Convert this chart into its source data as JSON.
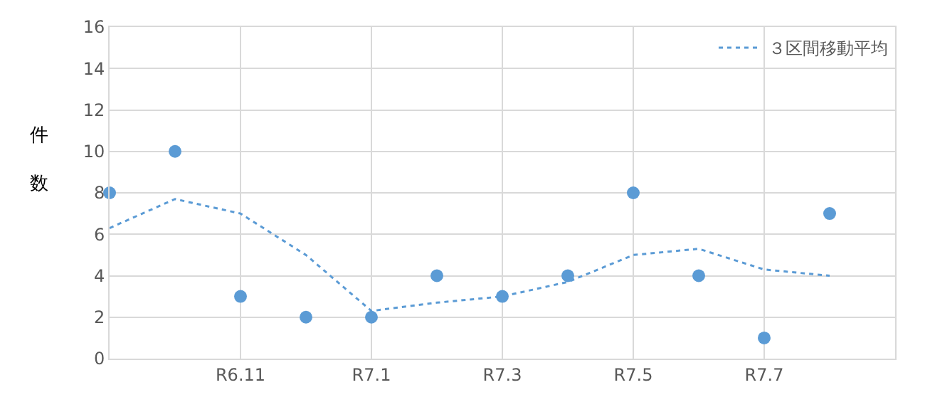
{
  "chart_data": {
    "type": "scatter",
    "ylabel": "件数",
    "categories": [
      null,
      null,
      "R6.11",
      null,
      "R7.1",
      null,
      "R7.3",
      null,
      "R7.5",
      null,
      "R7.7",
      null
    ],
    "series": [
      {
        "color": "#5b9bd5",
        "marker": "circle",
        "values": [
          8,
          10,
          3,
          2,
          2,
          4,
          3,
          4,
          8,
          4,
          1,
          7
        ]
      },
      {
        "type": "line",
        "name": "３区間移動平均",
        "color": "#5b9bd5",
        "line_style": "dotted",
        "values": [
          6.3,
          7.7,
          7.0,
          5.0,
          2.3,
          2.7,
          3.0,
          3.7,
          5.0,
          5.3,
          4.3,
          4.0
        ]
      }
    ],
    "ylim": [
      0,
      16
    ],
    "yticks": [
      0,
      2,
      4,
      6,
      8,
      10,
      12,
      14,
      16
    ],
    "grid": true,
    "legend": "top right"
  }
}
